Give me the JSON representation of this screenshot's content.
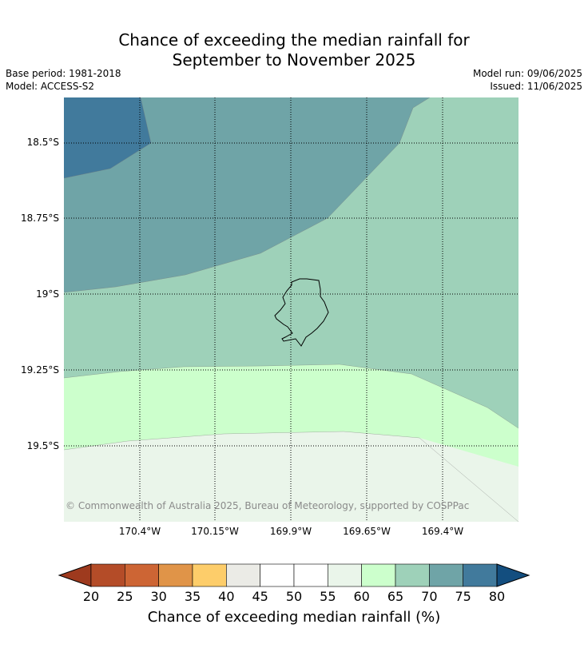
{
  "title_line1": "Chance of exceeding the median rainfall for",
  "title_line2": "September to November 2025",
  "base_period": "Base period: 1981-2018",
  "model": "Model: ACCESS-S2",
  "model_run": "Model run: 09/06/2025",
  "issued": "Issued: 11/06/2025",
  "lat_labels": [
    "18.5°S",
    "18.75°S",
    "19°S",
    "19.25°S",
    "19.5°S"
  ],
  "lon_labels": [
    "170.4°W",
    "170.15°W",
    "169.9°W",
    "169.65°W",
    "169.4°W"
  ],
  "copyright": "© Commonwealth of Australia 2025, Bureau of Meteorology, supported by COSPPac",
  "colorbar": {
    "ticks": [
      "20",
      "25",
      "30",
      "35",
      "40",
      "45",
      "50",
      "55",
      "60",
      "65",
      "70",
      "75",
      "80"
    ],
    "colors": [
      "#9e3a1e",
      "#b44c28",
      "#cd6534",
      "#e09448",
      "#fdcd6a",
      "#ebebe6",
      "#ffffff",
      "#ffffff",
      "#eaf5ea",
      "#ccffcc",
      "#9ed1b9",
      "#6fa4a7",
      "#417a9c",
      "#134e7f"
    ],
    "title": "Chance of exceeding median rainfall (%)"
  },
  "map_colors": {
    "band_75_80": "#417a9c",
    "band_70_75": "#6fa4a7",
    "band_65_70": "#9ed1b9",
    "band_60_65": "#ccffcc",
    "band_55_60": "#eaf5ea"
  }
}
